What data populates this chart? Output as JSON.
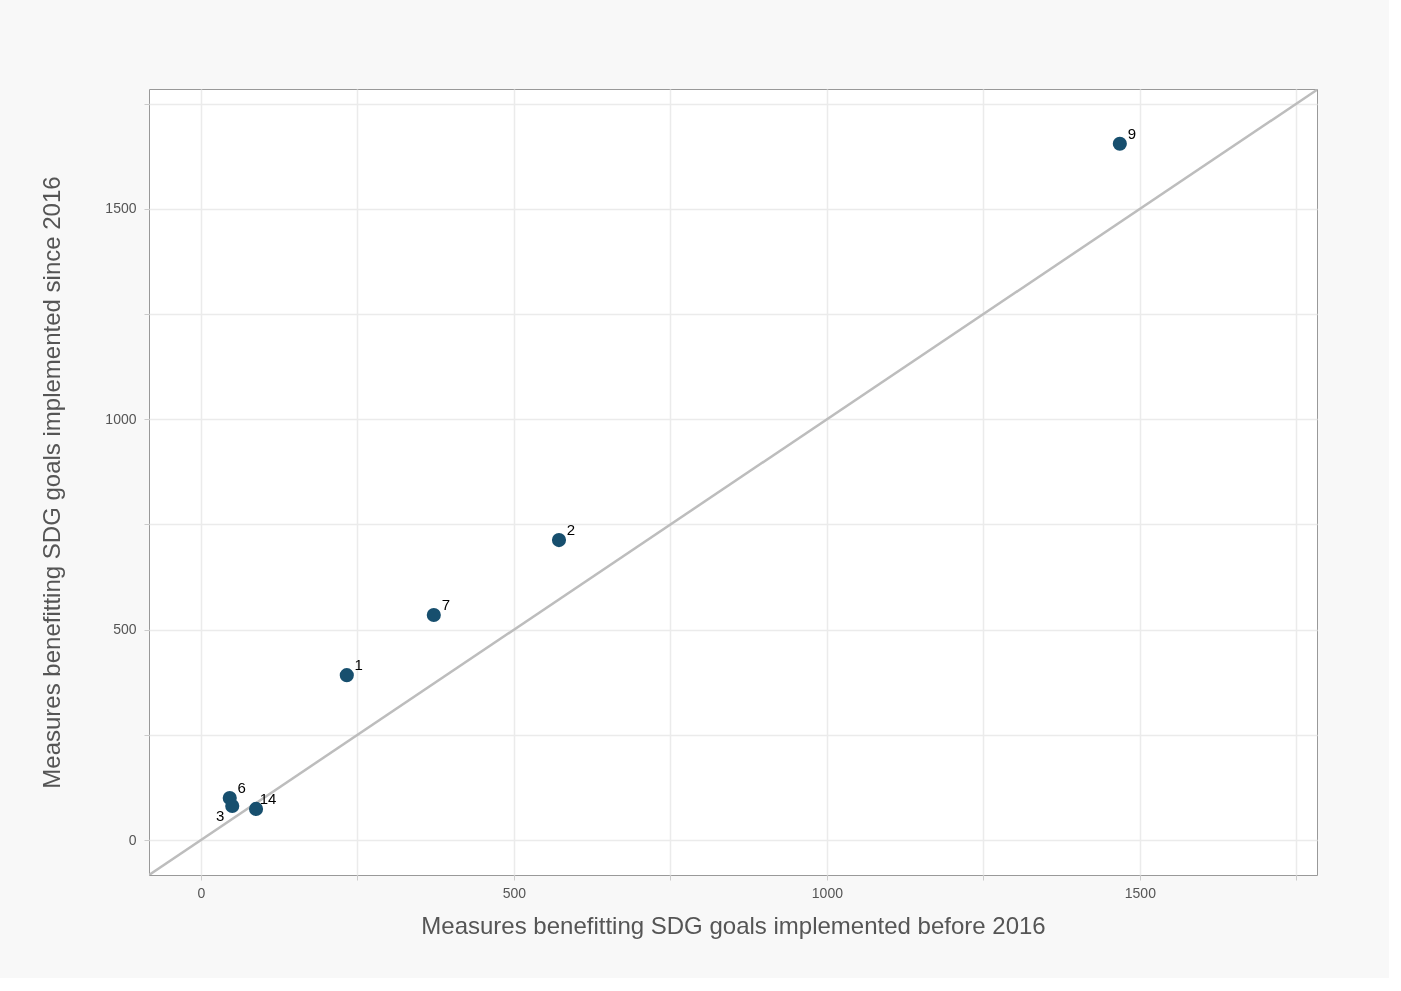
{
  "chart_data": {
    "type": "scatter",
    "xlabel": "Measures benefitting SDG goals implemented before 2016",
    "ylabel": "Measures benefitting SDG goals implemented since 2016",
    "xlim": [
      -83,
      1783
    ],
    "ylim": [
      -83,
      1785
    ],
    "xticks": [
      0,
      {
        "value": 250,
        "label": null
      },
      500,
      {
        "value": 750,
        "label": null
      },
      1000,
      {
        "value": 1250,
        "label": null
      },
      1500,
      {
        "value": 1750,
        "label": null
      }
    ],
    "yticks": [
      0,
      {
        "value": 250,
        "label": null
      },
      500,
      {
        "value": 750,
        "label": null
      },
      1000,
      {
        "value": 1250,
        "label": null
      },
      1500,
      {
        "value": 1750,
        "label": null
      }
    ],
    "grid": true,
    "marker": "circle",
    "series": [
      {
        "type": "scatter",
        "color": "#174f6e",
        "x": [
          1468,
          572,
          372,
          233,
          46,
          50,
          88
        ],
        "values": [
          1655,
          713,
          535,
          392,
          100,
          81,
          74
        ]
      },
      {
        "type": "line",
        "color": "#bdbdbd",
        "line_style": "solid",
        "marker": "none",
        "x": [
          -83,
          1783
        ],
        "values": [
          -83,
          1783
        ]
      }
    ],
    "annotations": [
      {
        "text": "9",
        "x": 1468,
        "y": 1655
      },
      {
        "text": "2",
        "x": 572,
        "y": 713
      },
      {
        "text": "7",
        "x": 372,
        "y": 535
      },
      {
        "text": "1",
        "x": 233,
        "y": 392
      },
      {
        "text": "6",
        "x": 46,
        "y": 100
      },
      {
        "text": "3",
        "x": 50,
        "y": 81
      },
      {
        "text": "14",
        "x": 88,
        "y": 74
      }
    ]
  }
}
